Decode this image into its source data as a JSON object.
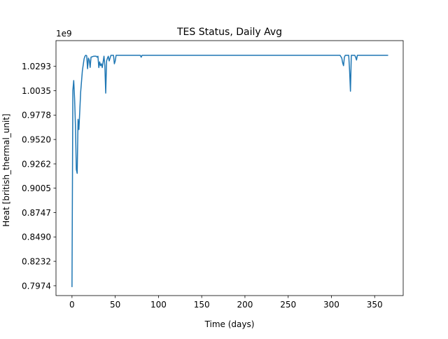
{
  "chart_data": {
    "type": "line",
    "title": "TES Status, Daily Avg",
    "xlabel": "Time (days)",
    "ylabel": "Heat [british_thermal_unit]",
    "y_offset_label": "1e9",
    "x_ticks": [
      0,
      50,
      100,
      150,
      200,
      250,
      300,
      350
    ],
    "y_ticks": [
      0.7974,
      0.8232,
      0.849,
      0.8747,
      0.9005,
      0.9262,
      0.952,
      0.9778,
      1.0035,
      1.0293
    ],
    "y_tick_labels": [
      "0.7974",
      "0.8232",
      "0.8490",
      "0.8747",
      "0.9005",
      "0.9262",
      "0.9520",
      "0.9778",
      "1.0035",
      "1.0293"
    ],
    "xlim": [
      -18.5,
      383
    ],
    "ylim": [
      0.787,
      1.0565
    ],
    "grid": false,
    "series_color": "#1f77b4",
    "series": [
      {
        "x": [
          0,
          1,
          2,
          3,
          4,
          5,
          6,
          7,
          8,
          10,
          12,
          14,
          15,
          16,
          17,
          18,
          19,
          20,
          21,
          22,
          25,
          27,
          28,
          29,
          30,
          31,
          32,
          33,
          34,
          35,
          36,
          37,
          38,
          39,
          40,
          41,
          42,
          43,
          45,
          48,
          49,
          50,
          51,
          52,
          53,
          55,
          60,
          70,
          79,
          80,
          81,
          82,
          90,
          150,
          200,
          250,
          300,
          310,
          312,
          313,
          314,
          315,
          316,
          318,
          320,
          321,
          322,
          323,
          325,
          327,
          328,
          329,
          330,
          331,
          332,
          333,
          335,
          337,
          338,
          340,
          342,
          344,
          345,
          346,
          347,
          348,
          349,
          350,
          351,
          352,
          353,
          354,
          355,
          356,
          357,
          358,
          360,
          362,
          364,
          365
        ],
        "y": [
          0.7965,
          1.004,
          1.0143,
          0.995,
          0.9665,
          0.9203,
          0.9162,
          0.9733,
          0.9625,
          1.0019,
          1.0247,
          1.0373,
          1.04,
          1.041,
          1.0405,
          1.0268,
          1.038,
          1.036,
          1.0282,
          1.039,
          1.04,
          1.04,
          1.04,
          1.039,
          1.04,
          1.028,
          1.034,
          1.03,
          1.032,
          1.028,
          1.034,
          1.04,
          1.03,
          1.001,
          1.035,
          1.038,
          1.04,
          1.035,
          1.041,
          1.041,
          1.032,
          1.035,
          1.041,
          1.041,
          1.041,
          1.041,
          1.041,
          1.041,
          1.041,
          1.039,
          1.041,
          1.041,
          1.041,
          1.041,
          1.041,
          1.041,
          1.041,
          1.041,
          1.038,
          1.033,
          1.03,
          1.039,
          1.041,
          1.041,
          1.041,
          1.025,
          1.003,
          1.041,
          1.041,
          1.041,
          1.039,
          1.036,
          1.041,
          1.041,
          1.041,
          1.041,
          1.041,
          1.041,
          1.041,
          1.041,
          1.041,
          1.041,
          1.041,
          1.041,
          1.041,
          1.041,
          1.041,
          1.041,
          1.041,
          1.041,
          1.041,
          1.041,
          1.041,
          1.041,
          1.041,
          1.041,
          1.041,
          1.041,
          1.041,
          1.041
        ]
      }
    ]
  }
}
